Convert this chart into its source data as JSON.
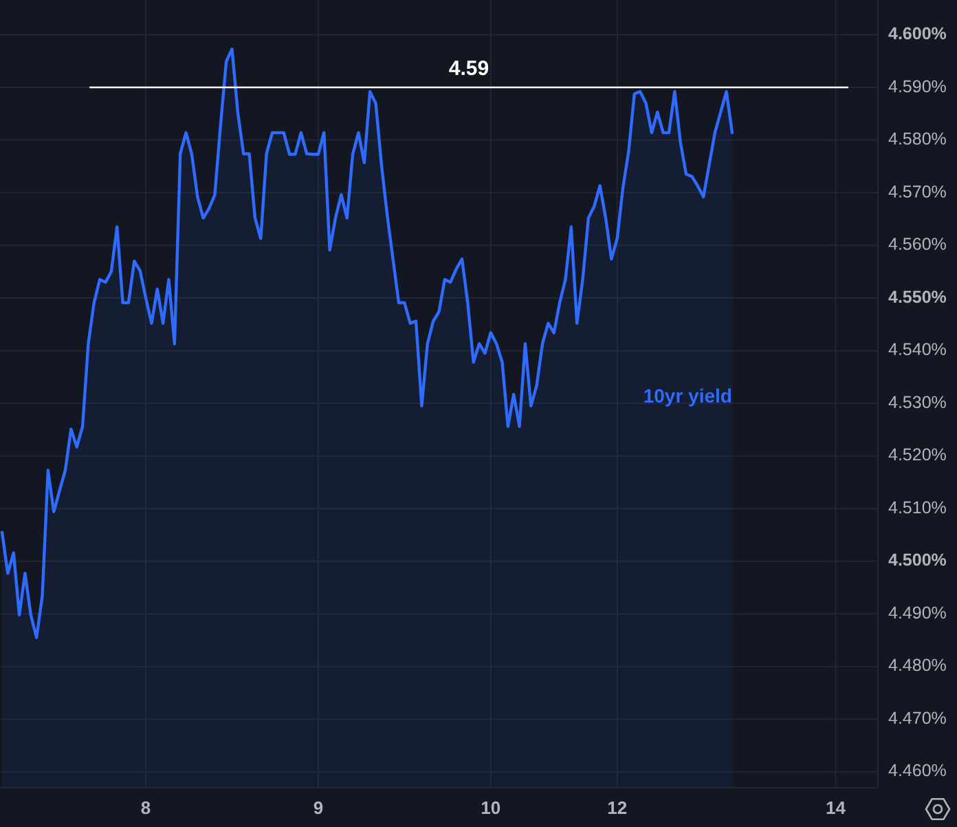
{
  "chart_data": {
    "type": "area",
    "categories": [
      null,
      null,
      null,
      null,
      null,
      null,
      null,
      null,
      null,
      null,
      null,
      null,
      null,
      null,
      null,
      null,
      null,
      null,
      null,
      null,
      null,
      null,
      null,
      null,
      null,
      "8",
      null,
      null,
      null,
      null,
      null,
      null,
      null,
      null,
      null,
      null,
      null,
      null,
      null,
      null,
      null,
      null,
      null,
      null,
      null,
      null,
      null,
      null,
      null,
      null,
      null,
      null,
      null,
      null,
      null,
      "9",
      null,
      null,
      null,
      null,
      null,
      null,
      null,
      null,
      null,
      null,
      null,
      null,
      null,
      null,
      null,
      null,
      null,
      null,
      null,
      null,
      null,
      null,
      null,
      null,
      null,
      null,
      null,
      null,
      null,
      "10",
      null,
      null,
      null,
      null,
      null,
      null,
      null,
      null,
      null,
      null,
      null,
      null,
      null,
      null,
      null,
      null,
      null,
      null,
      null,
      null,
      null,
      "12",
      null,
      null,
      null,
      null,
      null,
      null,
      null,
      null,
      null,
      null,
      null,
      null,
      null,
      null,
      null,
      null,
      null,
      null,
      null,
      null,
      null,
      null,
      null,
      null,
      null,
      null,
      null,
      null,
      null,
      null,
      null,
      null,
      null,
      null,
      null,
      null,
      null,
      "14",
      null,
      null,
      null,
      null,
      null,
      null,
      null
    ],
    "ylim": [
      4.4571,
      4.6066
    ],
    "yticks": [
      {
        "value": 4.46,
        "label": "4.460%"
      },
      {
        "value": 4.47,
        "label": "4.470%"
      },
      {
        "value": 4.48,
        "label": "4.480%"
      },
      {
        "value": 4.49,
        "label": "4.490%"
      },
      {
        "value": 4.5,
        "label": "4.500%"
      },
      {
        "value": 4.51,
        "label": "4.510%"
      },
      {
        "value": 4.52,
        "label": "4.520%"
      },
      {
        "value": 4.53,
        "label": "4.530%"
      },
      {
        "value": 4.54,
        "label": "4.540%"
      },
      {
        "value": 4.55,
        "label": "4.550%"
      },
      {
        "value": 4.56,
        "label": "4.560%"
      },
      {
        "value": 4.57,
        "label": "4.570%"
      },
      {
        "value": 4.58,
        "label": "4.580%"
      },
      {
        "value": 4.59,
        "label": "4.590%"
      },
      {
        "value": 4.6,
        "label": "4.600%"
      }
    ],
    "grid": true,
    "ref_lines": [
      {
        "axis": "y",
        "value": 4.59,
        "label": "4.59",
        "color": "#ffffff"
      }
    ],
    "series": [
      {
        "name": "10yr yield",
        "color": "#2f6bff",
        "values": [
          4.5055,
          4.4977,
          4.5016,
          4.4898,
          4.4977,
          4.4898,
          4.4855,
          4.4934,
          4.5173,
          4.5094,
          4.5134,
          4.5173,
          4.5251,
          4.5217,
          4.5256,
          4.5413,
          4.5491,
          4.5535,
          4.553,
          4.555,
          4.5635,
          4.5491,
          4.5491,
          4.557,
          4.5552,
          4.55,
          4.5452,
          4.5517,
          4.5452,
          4.5535,
          4.5413,
          4.5774,
          4.5814,
          4.5773,
          4.5692,
          4.5652,
          4.567,
          4.5696,
          4.5827,
          4.5949,
          4.5973,
          4.5853,
          4.5774,
          4.5774,
          4.5652,
          4.5613,
          4.5774,
          4.5814,
          4.5814,
          4.5814,
          4.5773,
          4.5773,
          4.5814,
          4.5774,
          4.5773,
          4.5773,
          4.5814,
          4.5591,
          4.5652,
          4.5696,
          4.5652,
          4.5773,
          4.5814,
          4.5757,
          4.5892,
          4.587,
          4.5753,
          4.5657,
          4.5574,
          4.5491,
          4.5491,
          4.5452,
          4.5456,
          4.5295,
          4.5413,
          4.5456,
          4.5474,
          4.5535,
          4.553,
          4.5555,
          4.5574,
          4.5491,
          4.5378,
          4.5413,
          4.5395,
          4.5434,
          4.5413,
          4.5378,
          4.5256,
          4.5317,
          4.5256,
          4.5413,
          4.5295,
          4.5334,
          4.5413,
          4.5452,
          4.5434,
          4.5491,
          4.5535,
          4.5635,
          4.5452,
          4.5535,
          4.5652,
          4.5674,
          4.5713,
          4.5652,
          4.5574,
          4.5613,
          4.5709,
          4.5779,
          4.5888,
          4.5892,
          4.587,
          4.5814,
          4.5853,
          4.5814,
          4.5814,
          4.5892,
          4.5796,
          4.5735,
          4.5731,
          4.5713,
          4.5692,
          4.5753,
          4.5814,
          4.5853,
          4.5892,
          4.5814,
          null,
          null,
          null,
          null,
          null,
          null,
          null,
          null,
          null,
          null,
          null,
          null,
          null,
          null,
          null,
          null,
          null,
          null,
          null,
          null,
          null,
          null,
          null,
          null,
          null
        ]
      }
    ]
  }
}
